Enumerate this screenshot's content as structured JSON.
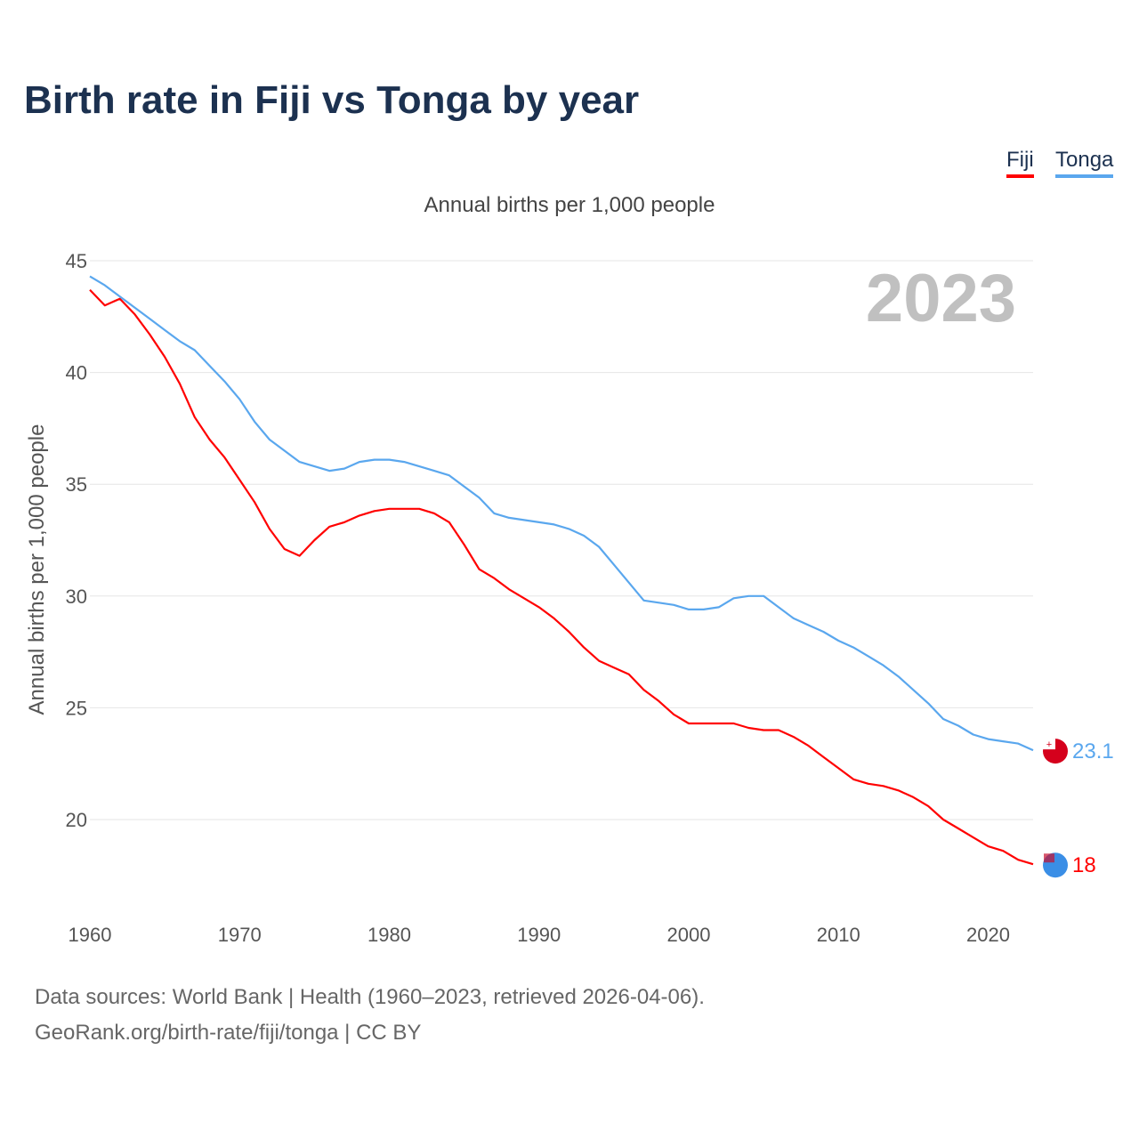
{
  "chart_data": {
    "type": "line",
    "title": "Birth rate in Fiji vs Tonga by year",
    "subtitle": "Annual births per 1,000 people",
    "xlabel": "",
    "ylabel": "Annual births per 1,000 people",
    "year_label": "2023",
    "x": [
      1960,
      1961,
      1962,
      1963,
      1964,
      1965,
      1966,
      1967,
      1968,
      1969,
      1970,
      1971,
      1972,
      1973,
      1974,
      1975,
      1976,
      1977,
      1978,
      1979,
      1980,
      1981,
      1982,
      1983,
      1984,
      1985,
      1986,
      1987,
      1988,
      1989,
      1990,
      1991,
      1992,
      1993,
      1994,
      1995,
      1996,
      1997,
      1998,
      1999,
      2000,
      2001,
      2002,
      2003,
      2004,
      2005,
      2006,
      2007,
      2008,
      2009,
      2010,
      2011,
      2012,
      2013,
      2014,
      2015,
      2016,
      2017,
      2018,
      2019,
      2020,
      2021,
      2022,
      2023
    ],
    "series": [
      {
        "name": "Fiji",
        "color": "#ff0000",
        "end_label": "18",
        "values": [
          43.7,
          43.0,
          43.3,
          42.6,
          41.7,
          40.7,
          39.5,
          38.0,
          37.0,
          36.2,
          35.2,
          34.2,
          33.0,
          32.1,
          31.8,
          32.5,
          33.1,
          33.3,
          33.6,
          33.8,
          33.9,
          33.9,
          33.9,
          33.7,
          33.3,
          32.3,
          31.2,
          30.8,
          30.3,
          29.9,
          29.5,
          29.0,
          28.4,
          27.7,
          27.1,
          26.8,
          26.5,
          25.8,
          25.3,
          24.7,
          24.3,
          24.3,
          24.3,
          24.3,
          24.1,
          24.0,
          24.0,
          23.7,
          23.3,
          22.8,
          22.3,
          21.8,
          21.6,
          21.5,
          21.3,
          21.0,
          20.6,
          20.0,
          19.6,
          19.2,
          18.8,
          18.6,
          18.2,
          18.0
        ]
      },
      {
        "name": "Tonga",
        "color": "#5aa7ee",
        "end_label": "23.1",
        "values": [
          44.3,
          43.9,
          43.4,
          42.9,
          42.4,
          41.9,
          41.4,
          41.0,
          40.3,
          39.6,
          38.8,
          37.8,
          37.0,
          36.5,
          36.0,
          35.8,
          35.6,
          35.7,
          36.0,
          36.1,
          36.1,
          36.0,
          35.8,
          35.6,
          35.4,
          34.9,
          34.4,
          33.7,
          33.5,
          33.4,
          33.3,
          33.2,
          33.0,
          32.7,
          32.2,
          31.4,
          30.6,
          29.8,
          29.7,
          29.6,
          29.4,
          29.4,
          29.5,
          29.9,
          30.0,
          30.0,
          29.5,
          29.0,
          28.7,
          28.4,
          28.0,
          27.7,
          27.3,
          26.9,
          26.4,
          25.8,
          25.2,
          24.5,
          24.2,
          23.8,
          23.6,
          23.5,
          23.4,
          23.1
        ]
      }
    ],
    "yticks": [
      "20",
      "25",
      "30",
      "35",
      "40",
      "45"
    ],
    "xticks": [
      "1960",
      "1970",
      "1980",
      "1990",
      "2000",
      "2010",
      "2020"
    ],
    "xlim": [
      1960,
      2023
    ],
    "ylim": [
      16.5,
      45
    ],
    "grid": true,
    "legend_placement": "top-right"
  },
  "source_line1": "Data sources: World Bank | Health (1960–2023, retrieved 2026-04-06).",
  "source_line2": "GeoRank.org/birth-rate/fiji/tonga | CC BY"
}
